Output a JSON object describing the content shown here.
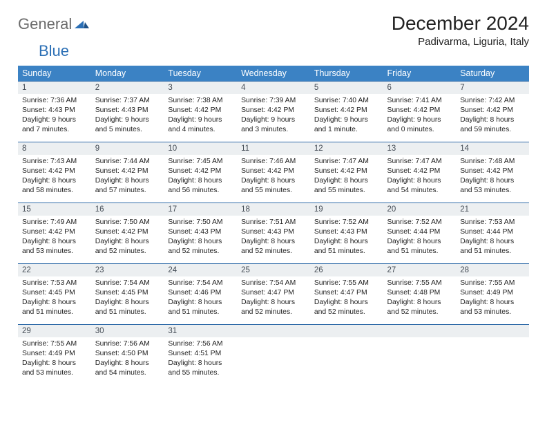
{
  "logo": {
    "general": "General",
    "blue": "Blue"
  },
  "title": "December 2024",
  "location": "Padivarma, Liguria, Italy",
  "colors": {
    "header_bg": "#3b82c4",
    "header_text": "#ffffff",
    "daynum_bg": "#eceff1",
    "daynum_text": "#444c55",
    "border_top": "#2f6aa8",
    "logo_gray": "#6b6b6b",
    "logo_blue": "#2b6fb5"
  },
  "weekdays": [
    "Sunday",
    "Monday",
    "Tuesday",
    "Wednesday",
    "Thursday",
    "Friday",
    "Saturday"
  ],
  "days": [
    {
      "n": 1,
      "sr": "7:36 AM",
      "ss": "4:43 PM",
      "dl": "9 hours and 7 minutes."
    },
    {
      "n": 2,
      "sr": "7:37 AM",
      "ss": "4:43 PM",
      "dl": "9 hours and 5 minutes."
    },
    {
      "n": 3,
      "sr": "7:38 AM",
      "ss": "4:42 PM",
      "dl": "9 hours and 4 minutes."
    },
    {
      "n": 4,
      "sr": "7:39 AM",
      "ss": "4:42 PM",
      "dl": "9 hours and 3 minutes."
    },
    {
      "n": 5,
      "sr": "7:40 AM",
      "ss": "4:42 PM",
      "dl": "9 hours and 1 minute."
    },
    {
      "n": 6,
      "sr": "7:41 AM",
      "ss": "4:42 PM",
      "dl": "9 hours and 0 minutes."
    },
    {
      "n": 7,
      "sr": "7:42 AM",
      "ss": "4:42 PM",
      "dl": "8 hours and 59 minutes."
    },
    {
      "n": 8,
      "sr": "7:43 AM",
      "ss": "4:42 PM",
      "dl": "8 hours and 58 minutes."
    },
    {
      "n": 9,
      "sr": "7:44 AM",
      "ss": "4:42 PM",
      "dl": "8 hours and 57 minutes."
    },
    {
      "n": 10,
      "sr": "7:45 AM",
      "ss": "4:42 PM",
      "dl": "8 hours and 56 minutes."
    },
    {
      "n": 11,
      "sr": "7:46 AM",
      "ss": "4:42 PM",
      "dl": "8 hours and 55 minutes."
    },
    {
      "n": 12,
      "sr": "7:47 AM",
      "ss": "4:42 PM",
      "dl": "8 hours and 55 minutes."
    },
    {
      "n": 13,
      "sr": "7:47 AM",
      "ss": "4:42 PM",
      "dl": "8 hours and 54 minutes."
    },
    {
      "n": 14,
      "sr": "7:48 AM",
      "ss": "4:42 PM",
      "dl": "8 hours and 53 minutes."
    },
    {
      "n": 15,
      "sr": "7:49 AM",
      "ss": "4:42 PM",
      "dl": "8 hours and 53 minutes."
    },
    {
      "n": 16,
      "sr": "7:50 AM",
      "ss": "4:42 PM",
      "dl": "8 hours and 52 minutes."
    },
    {
      "n": 17,
      "sr": "7:50 AM",
      "ss": "4:43 PM",
      "dl": "8 hours and 52 minutes."
    },
    {
      "n": 18,
      "sr": "7:51 AM",
      "ss": "4:43 PM",
      "dl": "8 hours and 52 minutes."
    },
    {
      "n": 19,
      "sr": "7:52 AM",
      "ss": "4:43 PM",
      "dl": "8 hours and 51 minutes."
    },
    {
      "n": 20,
      "sr": "7:52 AM",
      "ss": "4:44 PM",
      "dl": "8 hours and 51 minutes."
    },
    {
      "n": 21,
      "sr": "7:53 AM",
      "ss": "4:44 PM",
      "dl": "8 hours and 51 minutes."
    },
    {
      "n": 22,
      "sr": "7:53 AM",
      "ss": "4:45 PM",
      "dl": "8 hours and 51 minutes."
    },
    {
      "n": 23,
      "sr": "7:54 AM",
      "ss": "4:45 PM",
      "dl": "8 hours and 51 minutes."
    },
    {
      "n": 24,
      "sr": "7:54 AM",
      "ss": "4:46 PM",
      "dl": "8 hours and 51 minutes."
    },
    {
      "n": 25,
      "sr": "7:54 AM",
      "ss": "4:47 PM",
      "dl": "8 hours and 52 minutes."
    },
    {
      "n": 26,
      "sr": "7:55 AM",
      "ss": "4:47 PM",
      "dl": "8 hours and 52 minutes."
    },
    {
      "n": 27,
      "sr": "7:55 AM",
      "ss": "4:48 PM",
      "dl": "8 hours and 52 minutes."
    },
    {
      "n": 28,
      "sr": "7:55 AM",
      "ss": "4:49 PM",
      "dl": "8 hours and 53 minutes."
    },
    {
      "n": 29,
      "sr": "7:55 AM",
      "ss": "4:49 PM",
      "dl": "8 hours and 53 minutes."
    },
    {
      "n": 30,
      "sr": "7:56 AM",
      "ss": "4:50 PM",
      "dl": "8 hours and 54 minutes."
    },
    {
      "n": 31,
      "sr": "7:56 AM",
      "ss": "4:51 PM",
      "dl": "8 hours and 55 minutes."
    }
  ],
  "labels": {
    "sunrise": "Sunrise:",
    "sunset": "Sunset:",
    "daylight": "Daylight:"
  }
}
